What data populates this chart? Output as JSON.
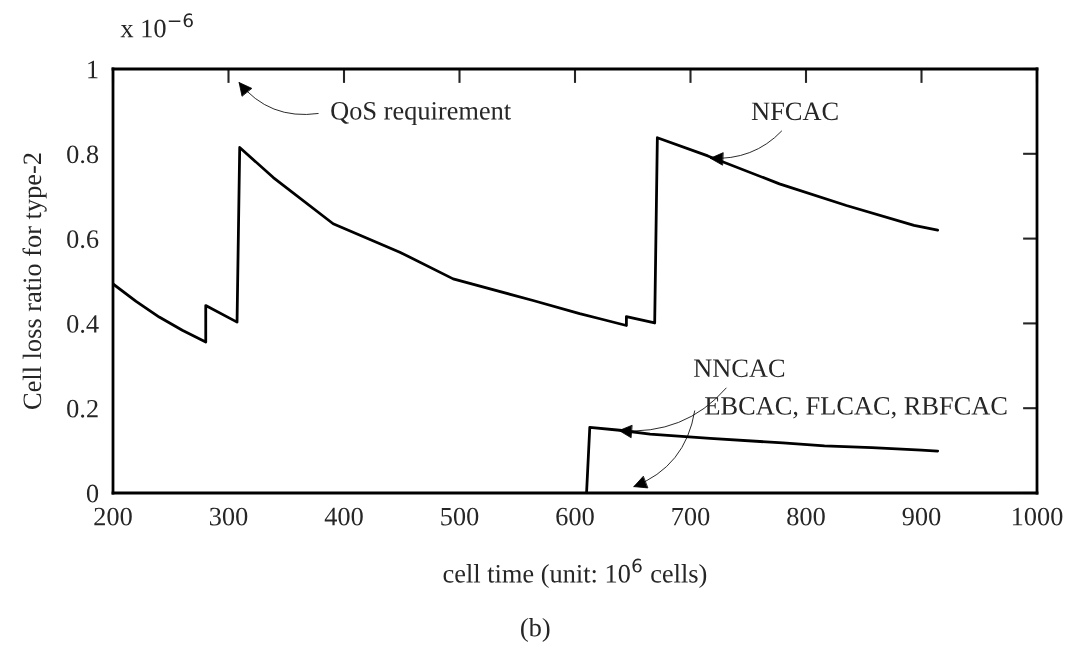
{
  "chart_data": {
    "type": "line",
    "xlabel": "cell time (unit: 10$^{6}$ cells)",
    "ylabel": "Cell loss ratio for type-2",
    "series": [
      {
        "color": "#000000",
        "x": [
          200,
          220,
          240,
          260,
          280.3,
          280.3,
          307.4,
          309.7,
          338.8,
          390.6,
          448.3,
          494.5,
          563.7,
          604,
          621.6,
          644.5,
          644.5,
          669,
          671.3,
          715,
          777,
          835,
          893.5,
          914
        ],
        "values": [
          0.493,
          0.452,
          0.415,
          0.384,
          0.356,
          0.442,
          0.403,
          0.815,
          0.744,
          0.635,
          0.568,
          0.505,
          0.454,
          0.423,
          0.411,
          0.395,
          0.416,
          0.401,
          0.838,
          0.795,
          0.729,
          0.678,
          0.631,
          0.62
        ]
      },
      {
        "color": "#000000",
        "x": [
          610,
          612.8,
          638.7,
          665,
          717,
          780,
          816,
          857,
          900,
          914
        ],
        "values": [
          0,
          0.155,
          0.148,
          0.139,
          0.129,
          0.118,
          0.111,
          0.107,
          0.101,
          0.099
        ]
      }
    ],
    "annotations": [
      "QoS requirement",
      {
        "text": "NFCAC",
        "x": 714,
        "y": 0.79
      },
      {
        "text": "NNCAC",
        "x": 635,
        "y": 0.148
      },
      "EBCAC, FLCAC, RBFCAC",
      "x 10$^{−6}$",
      "(b)"
    ],
    "xlim": [
      200,
      1000
    ],
    "xticks": [
      200,
      300,
      400,
      500,
      600,
      700,
      800,
      900,
      1000
    ],
    "ylim": [
      0,
      1
    ],
    "yticks": [
      0,
      0.2,
      0.4,
      0.6,
      0.8,
      1
    ],
    "grid": false,
    "legend": false,
    "marker": "none",
    "line_style": "solid"
  }
}
